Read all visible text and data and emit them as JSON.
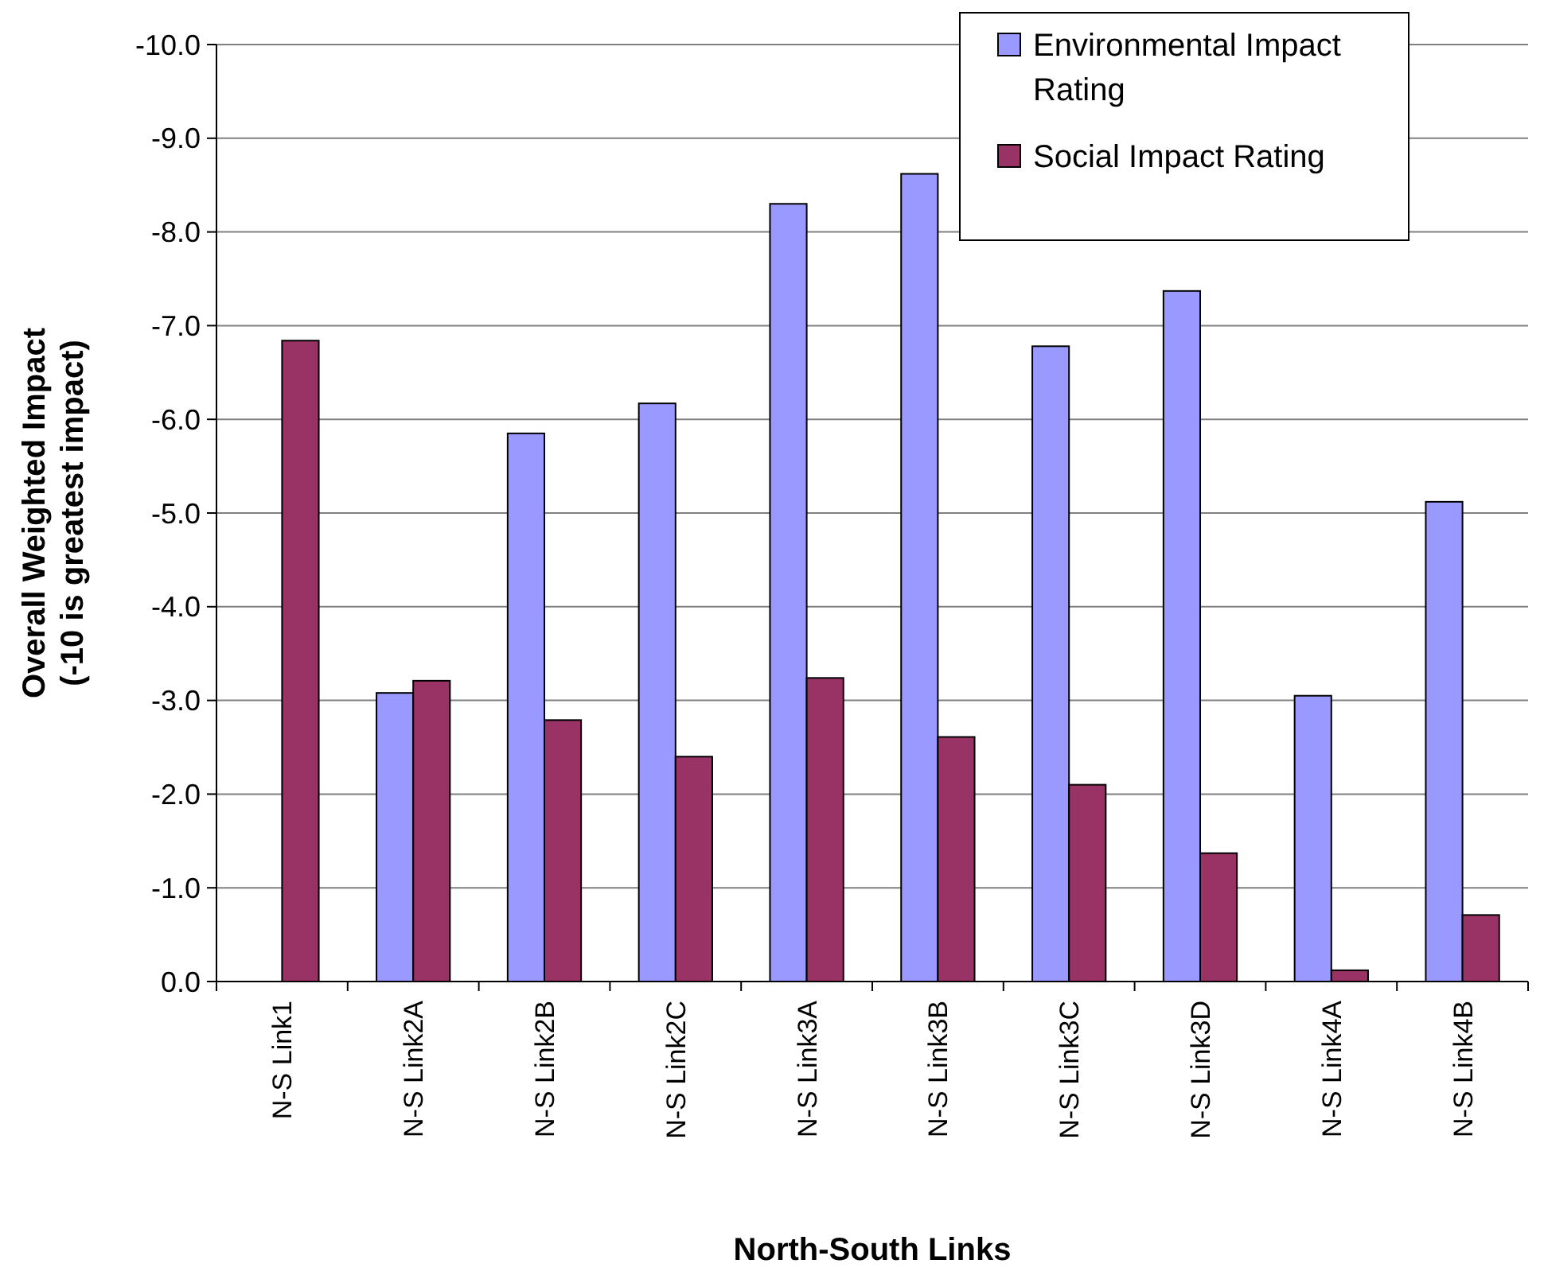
{
  "chart_data": {
    "type": "bar",
    "xlabel": "North-South Links",
    "ylabel": "Overall Weighted Impact\n(-10 is greatest impact)",
    "categories": [
      "N-S Link1",
      "N-S Link2A",
      "N-S Link2B",
      "N-S Link2C",
      "N-S Link3A",
      "N-S Link3B",
      "N-S Link3C",
      "N-S Link3D",
      "N-S Link4A",
      "N-S Link4B"
    ],
    "series": [
      {
        "name": "Environmental Impact Rating",
        "color": "#9999ff",
        "values": [
          null,
          -3.08,
          -5.85,
          -6.17,
          -8.3,
          -8.62,
          -6.78,
          -7.37,
          -3.05,
          -5.12
        ]
      },
      {
        "name": "Social Impact Rating",
        "color": "#993366",
        "values": [
          -6.84,
          -3.21,
          -2.79,
          -2.4,
          -3.24,
          -2.61,
          -2.1,
          -1.37,
          -0.12,
          -0.71
        ]
      }
    ],
    "ylim": [
      0,
      -10
    ],
    "yticks": [
      {
        "value": 0,
        "label": "0.0"
      },
      {
        "value": -1,
        "label": "-1.0"
      },
      {
        "value": -2,
        "label": "-2.0"
      },
      {
        "value": -3,
        "label": "-3.0"
      },
      {
        "value": -4,
        "label": "-4.0"
      },
      {
        "value": -5,
        "label": "-5.0"
      },
      {
        "value": -6,
        "label": "-6.0"
      },
      {
        "value": -7,
        "label": "-7.0"
      },
      {
        "value": -8,
        "label": "-8.0"
      },
      {
        "value": -9,
        "label": "-9.0"
      },
      {
        "value": -10,
        "label": "-10.0"
      }
    ],
    "grid": "y",
    "legend": "top right"
  }
}
